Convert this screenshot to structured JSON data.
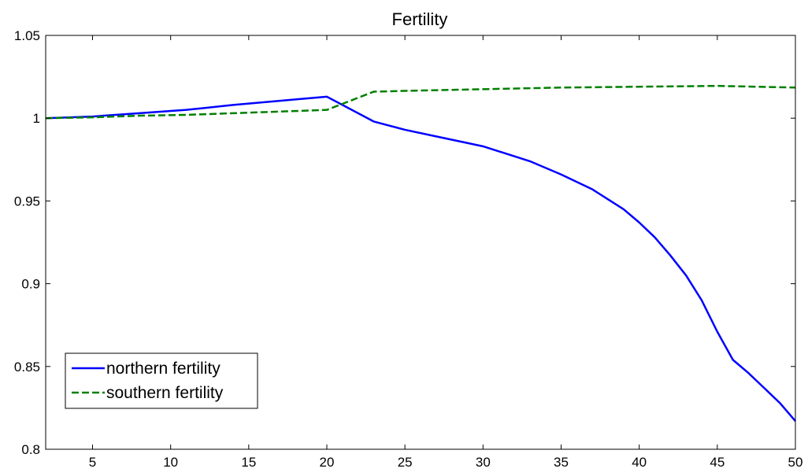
{
  "chart_data": {
    "type": "line",
    "title": "Fertility",
    "xlabel": "",
    "ylabel": "",
    "xlim": [
      2,
      50
    ],
    "ylim": [
      0.8,
      1.05
    ],
    "xticks": [
      5,
      10,
      15,
      20,
      25,
      30,
      35,
      40,
      45,
      50
    ],
    "xtick_labels": [
      "5",
      "10",
      "15",
      "20",
      "25",
      "30",
      "35",
      "40",
      "45",
      "50"
    ],
    "yticks": [
      0.8,
      0.85,
      0.9,
      0.95,
      1,
      1.05
    ],
    "ytick_labels": [
      "0.8",
      "0.85",
      "0.9",
      "0.95",
      "1",
      "1.05"
    ],
    "grid": false,
    "legend_position": "bottom-left",
    "series": [
      {
        "name": "northern fertility",
        "color": "#0000ff",
        "style": "solid",
        "x": [
          2,
          5,
          8,
          11,
          14,
          17,
          20,
          23,
          25,
          27,
          29,
          30,
          31,
          33,
          35,
          37,
          38,
          39,
          40,
          41,
          42,
          43,
          44,
          45,
          46,
          47,
          48,
          49,
          50
        ],
        "y": [
          1.0,
          1.001,
          1.003,
          1.005,
          1.008,
          1.0105,
          1.013,
          0.998,
          0.993,
          0.989,
          0.985,
          0.983,
          0.98,
          0.974,
          0.966,
          0.957,
          0.951,
          0.945,
          0.937,
          0.928,
          0.917,
          0.905,
          0.89,
          0.871,
          0.854,
          0.846,
          0.837,
          0.828,
          0.817
        ]
      },
      {
        "name": "southern fertility",
        "color": "#008000",
        "style": "dashed",
        "x": [
          2,
          5,
          8,
          11,
          14,
          17,
          20,
          23,
          25,
          30,
          35,
          40,
          45,
          50
        ],
        "y": [
          1.0,
          1.0005,
          1.0015,
          1.002,
          1.003,
          1.004,
          1.005,
          1.016,
          1.0165,
          1.0175,
          1.0185,
          1.019,
          1.0195,
          1.0185
        ]
      }
    ]
  }
}
